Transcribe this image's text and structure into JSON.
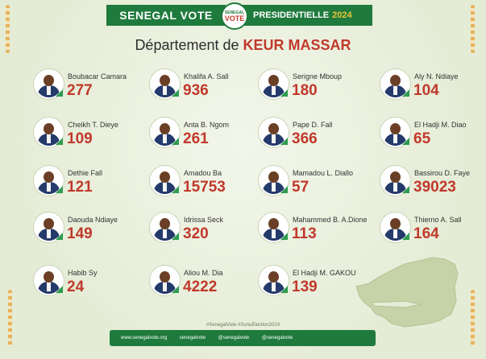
{
  "header": {
    "left": "SENEGAL VOTE",
    "right": "PRESIDENTIELLE",
    "year": "2024",
    "logo_top": "SENEGAL",
    "logo_bottom": "VOTE"
  },
  "title": {
    "prefix": "Département de",
    "place": "KEUR MASSAR"
  },
  "candidates": [
    {
      "name": "Boubacar Camara",
      "votes": "277"
    },
    {
      "name": "Khalifa A. Sall",
      "votes": "936"
    },
    {
      "name": "Serigne Mboup",
      "votes": "180"
    },
    {
      "name": "Aly N. Ndiaye",
      "votes": "104"
    },
    {
      "name": "Cheikh T. Dieye",
      "votes": "109"
    },
    {
      "name": "Anta B. Ngom",
      "votes": "261"
    },
    {
      "name": "Pape D. Fall",
      "votes": "366"
    },
    {
      "name": "El Hadji M. Diao",
      "votes": "65"
    },
    {
      "name": "Dethie Fall",
      "votes": "121"
    },
    {
      "name": "Amadou Ba",
      "votes": "15753"
    },
    {
      "name": "Mamadou L. Diallo",
      "votes": "57"
    },
    {
      "name": "Bassirou D. Faye",
      "votes": "39023"
    },
    {
      "name": "Daouda Ndiaye",
      "votes": "149"
    },
    {
      "name": "Idrissa Seck",
      "votes": "320"
    },
    {
      "name": "Mahammed B. A.Dione",
      "votes": "113"
    },
    {
      "name": "Thierno A. Sall",
      "votes": "164"
    },
    {
      "name": "Habib Sy",
      "votes": "24"
    },
    {
      "name": "Aliou M. Dia",
      "votes": "4222"
    },
    {
      "name": "El Hadji M. GAKOU",
      "votes": "139"
    }
  ],
  "hashtags": "#SenegalVote   #SunuElection2024",
  "footer": [
    "www.senegalvote.org",
    "senegalvote",
    "@senegalvote",
    "@senegalvote"
  ],
  "colors": {
    "green": "#1f7a3d",
    "red": "#c0392b",
    "background": "#e9efdd"
  }
}
